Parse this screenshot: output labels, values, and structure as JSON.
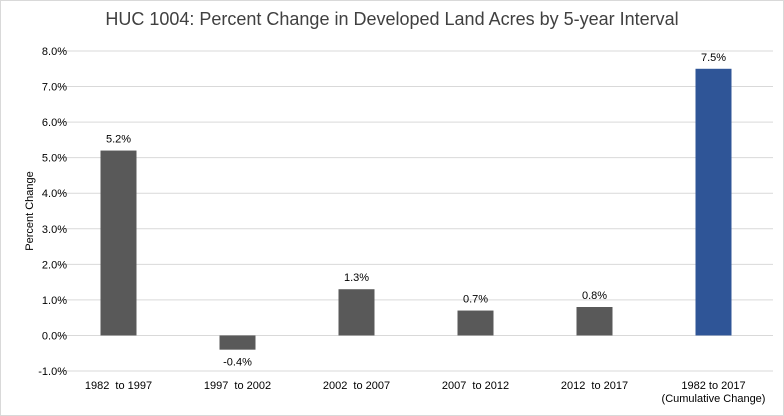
{
  "chart_data": {
    "type": "bar",
    "title": "HUC 1004: Percent Change in Developed Land Acres by 5-year Interval",
    "xlabel": "",
    "ylabel": "Percent Change",
    "ylim": [
      -1.0,
      8.0
    ],
    "ytick_labels": [
      "-1.0%",
      "0.0%",
      "1.0%",
      "2.0%",
      "3.0%",
      "4.0%",
      "5.0%",
      "6.0%",
      "7.0%",
      "8.0%"
    ],
    "grid": true,
    "legend": "none",
    "categories": [
      [
        "1982  to 1997"
      ],
      [
        "1997  to 2002"
      ],
      [
        "2002  to 2007"
      ],
      [
        "2007  to 2012"
      ],
      [
        "2012  to 2017"
      ],
      [
        "1982 to 2017",
        "(Cumulative Change)"
      ]
    ],
    "values": [
      5.2,
      -0.4,
      1.3,
      0.7,
      0.8,
      7.5
    ],
    "data_labels": [
      "5.2%",
      "-0.4%",
      "1.3%",
      "0.7%",
      "0.8%",
      "7.5%"
    ],
    "colors": {
      "bar": "#595959",
      "cumulative_bar": "#2f5597",
      "grid": "#d9d9d9",
      "title": "#404040"
    }
  }
}
